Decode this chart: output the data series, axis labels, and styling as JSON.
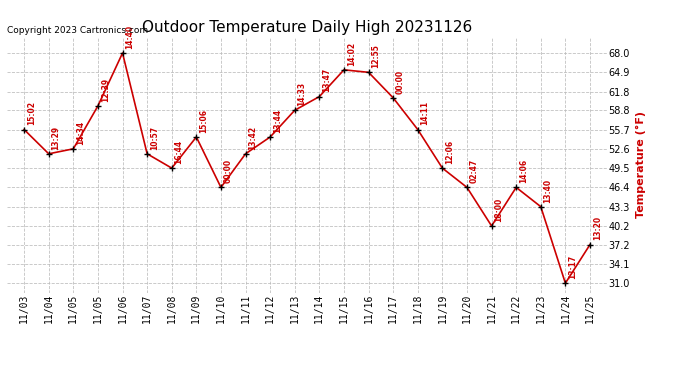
{
  "title": "Outdoor Temperature Daily High 20231126",
  "ylabel": "Temperature (°F)",
  "copyright": "Copyright 2023 Cartronics.com",
  "x_labels": [
    "11/03",
    "11/04",
    "11/05",
    "11/05",
    "11/06",
    "11/07",
    "11/08",
    "11/09",
    "11/10",
    "11/11",
    "11/12",
    "11/13",
    "11/14",
    "11/15",
    "11/16",
    "11/17",
    "11/18",
    "11/19",
    "11/20",
    "11/21",
    "11/22",
    "11/23",
    "11/24",
    "11/25"
  ],
  "temperatures": [
    55.7,
    51.8,
    52.6,
    59.5,
    68.0,
    51.8,
    49.5,
    54.5,
    46.4,
    51.8,
    54.5,
    58.8,
    61.0,
    65.3,
    64.9,
    60.8,
    55.7,
    49.5,
    46.4,
    40.2,
    46.4,
    43.3,
    31.0,
    37.2
  ],
  "time_labels": [
    "15:02",
    "13:29",
    "14:34",
    "12:39",
    "14:40",
    "10:57",
    "16:44",
    "15:06",
    "00:00",
    "13:42",
    "13:44",
    "14:33",
    "13:47",
    "14:02",
    "12:55",
    "00:00",
    "14:11",
    "12:06",
    "02:47",
    "18:00",
    "14:06",
    "13:40",
    "13:17",
    "13:20"
  ],
  "ylim": [
    29.5,
    70.5
  ],
  "yticks": [
    31.0,
    34.1,
    37.2,
    40.2,
    43.3,
    46.4,
    49.5,
    52.6,
    55.7,
    58.8,
    61.8,
    64.9,
    68.0
  ],
  "line_color": "#cc0000",
  "marker_color": "#000000",
  "bg_color": "#ffffff",
  "grid_color": "#bbbbbb",
  "title_color": "#000000",
  "label_color": "#cc0000",
  "copyright_color": "#000000",
  "title_fontsize": 11,
  "ylabel_fontsize": 8,
  "tick_fontsize": 7,
  "annotation_fontsize": 5.5,
  "copyright_fontsize": 6.5
}
